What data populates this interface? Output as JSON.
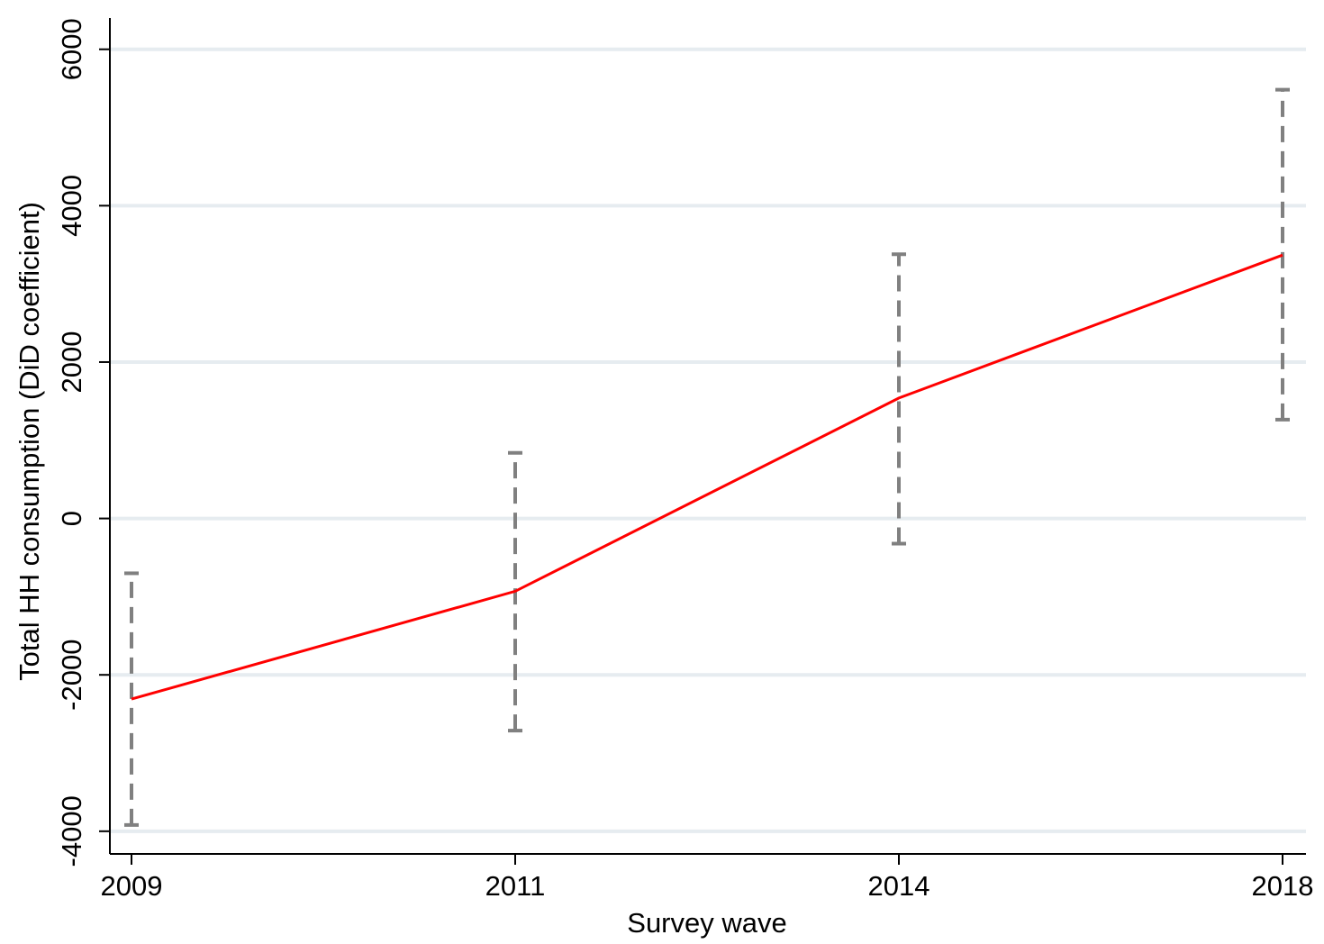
{
  "chart_data": {
    "type": "line",
    "x_label": "Survey wave",
    "y_label": "Total HH consumption (DiD coefficient)",
    "categories": [
      "2009",
      "2011",
      "2014",
      "2018"
    ],
    "series": [
      {
        "name": "DiD coefficient",
        "color": "#ff0000",
        "values": [
          -2310,
          -931,
          1540,
          3368
        ],
        "ci_lower": [
          -3920,
          -2713,
          -322,
          1264
        ],
        "ci_upper": [
          -701,
          839,
          3379,
          5483
        ]
      }
    ],
    "ci_color": "#808080",
    "ylim": [
      -4290,
      6400
    ],
    "yticks": [
      -4000,
      -2000,
      0,
      2000,
      4000,
      6000
    ],
    "grid": true
  }
}
